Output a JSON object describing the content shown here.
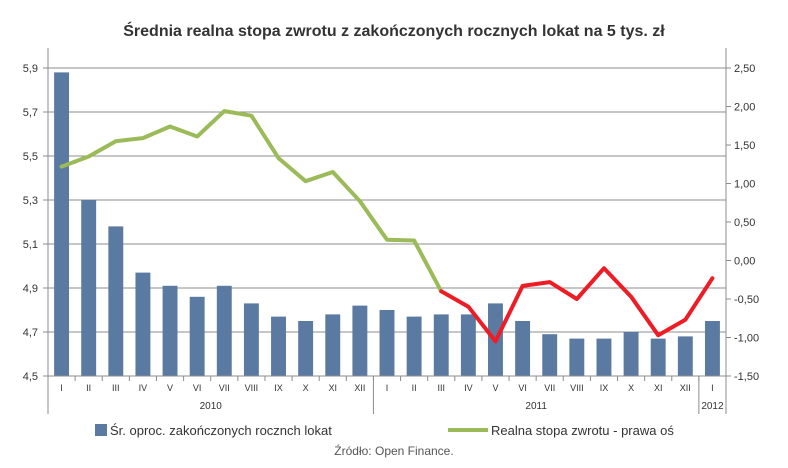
{
  "chart_data": {
    "type": "bar",
    "title": "Średnia realna stopa zwrotu z zakończonych rocznych lokat na 5 tys. zł",
    "categories": [
      "I",
      "II",
      "III",
      "IV",
      "V",
      "VI",
      "VII",
      "VIII",
      "IX",
      "X",
      "XI",
      "XII",
      "I",
      "II",
      "III",
      "IV",
      "V",
      "VI",
      "VII",
      "VIII",
      "IX",
      "X",
      "XI",
      "XII",
      "I"
    ],
    "year_groups": [
      {
        "label": "2010",
        "start": 0,
        "end": 11
      },
      {
        "label": "2011",
        "start": 12,
        "end": 23
      },
      {
        "label": "2012",
        "start": 24,
        "end": 24
      }
    ],
    "series": [
      {
        "name": "Śr. oproc. zakończonych rocznch lokat",
        "type": "bar",
        "axis": "left",
        "color": "#5b7aa1",
        "values": [
          5.88,
          5.3,
          5.18,
          4.97,
          4.91,
          4.86,
          4.91,
          4.83,
          4.77,
          4.75,
          4.78,
          4.82,
          4.8,
          4.77,
          4.78,
          4.78,
          4.83,
          4.75,
          4.69,
          4.67,
          4.67,
          4.7,
          4.67,
          4.68,
          4.75
        ]
      },
      {
        "name": "Realna stopa zwrotu - prawa oś",
        "type": "line",
        "axis": "right",
        "color": "#9bbb59",
        "negative_color": "#ee1c25",
        "values": [
          1.22,
          1.35,
          1.55,
          1.59,
          1.74,
          1.61,
          1.94,
          1.88,
          1.33,
          1.03,
          1.15,
          0.77,
          0.27,
          0.26,
          -0.4,
          -0.6,
          -1.05,
          -0.33,
          -0.28,
          -0.5,
          -0.1,
          -0.47,
          -0.97,
          -0.77,
          -0.23
        ]
      }
    ],
    "y_left": {
      "min": 4.5,
      "max": 5.9,
      "ticks": [
        "4,5",
        "4,7",
        "4,9",
        "5,1",
        "5,3",
        "5,5",
        "5,7",
        "5,9"
      ]
    },
    "y_right": {
      "min": -1.5,
      "max": 2.5,
      "ticks": [
        "-1,50",
        "-1,00",
        "-0,50",
        "0,00",
        "0,50",
        "1,00",
        "1,50",
        "2,00",
        "2,50"
      ]
    },
    "grid": true,
    "legend_position": "bottom",
    "source": "Źródło: Open Finance."
  }
}
